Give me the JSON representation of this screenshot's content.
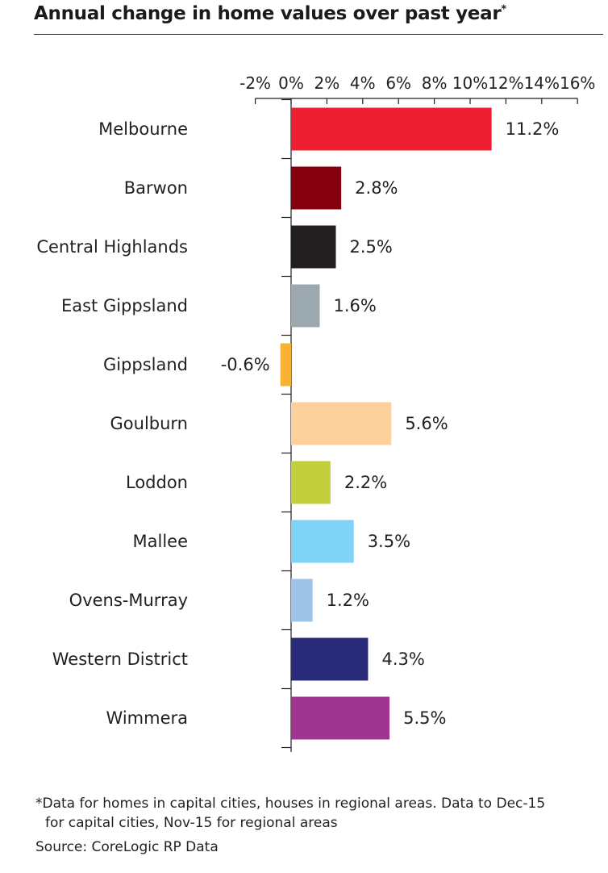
{
  "header": {
    "title": "Annual change in home values over past year",
    "title_mark": "*"
  },
  "chart_data": {
    "type": "bar",
    "orientation": "horizontal",
    "title": "Annual change in home values over past year*",
    "x_ticks": [
      "-2%",
      "0%",
      "2%",
      "4%",
      "6%",
      "8%",
      "10%",
      "12%",
      "14%",
      "16%"
    ],
    "xlim": [
      -2,
      16
    ],
    "categories": [
      "Melbourne",
      "Barwon",
      "Central Highlands",
      "East Gippsland",
      "Gippsland",
      "Goulburn",
      "Loddon",
      "Mallee",
      "Ovens-Murray",
      "Western District",
      "Wimmera"
    ],
    "values": [
      11.2,
      2.8,
      2.5,
      1.6,
      -0.6,
      5.6,
      2.2,
      3.5,
      1.2,
      4.3,
      5.5
    ],
    "value_labels": [
      "11.2%",
      "2.8%",
      "2.5%",
      "1.6%",
      "-0.6%",
      "5.6%",
      "2.2%",
      "3.5%",
      "1.2%",
      "4.3%",
      "5.5%"
    ],
    "colors": [
      "#ec2032",
      "#85000f",
      "#231f20",
      "#9ba8af",
      "#f9b233",
      "#fdd19b",
      "#c2ce3b",
      "#7fd3f7",
      "#9dc3e6",
      "#2b2b7b",
      "#a0358f"
    ],
    "grid": false,
    "legend": "none"
  },
  "footer": {
    "note_line1": "*Data for homes in capital cities, houses in regional areas. Data to Dec-15",
    "note_line2": "for capital cities, Nov-15 for regional areas",
    "source": "Source: CoreLogic RP Data"
  }
}
